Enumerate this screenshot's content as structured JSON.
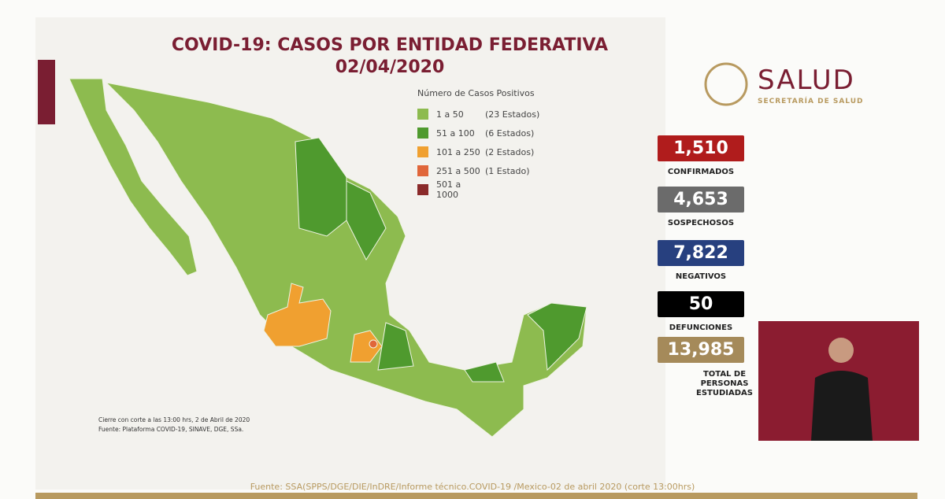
{
  "header": {
    "title": "COVID-19: CASOS POR ENTIDAD FEDERATIVA",
    "date": "02/04/2020"
  },
  "legend": {
    "title": "Número de Casos Positivos",
    "items": [
      {
        "range": "1 a  50",
        "count": "(23 Estados)",
        "color": "#8dbb4f"
      },
      {
        "range": "51 a  100",
        "count": "(6 Estados)",
        "color": "#4f9a2e"
      },
      {
        "range": "101 a  250",
        "count": "(2 Estados)",
        "color": "#f0a030"
      },
      {
        "range": "251 a  500",
        "count": "(1 Estado)",
        "color": "#e0663a"
      },
      {
        "range": "501 a 1000",
        "color": "#8a2a2a"
      }
    ]
  },
  "logo": {
    "name": "SALUD",
    "subtitle": "SECRETARÍA DE SALUD"
  },
  "stats": [
    {
      "value": "1,510",
      "label": "CONFIRMADOS",
      "color": "#b01c1c"
    },
    {
      "value": "4,653",
      "label": "SOSPECHOSOS",
      "color": "#6b6b6b"
    },
    {
      "value": "7,822",
      "label": "NEGATIVOS",
      "color": "#27407f"
    },
    {
      "value": "50",
      "label": "DEFUNCIONES",
      "color": "#000000"
    },
    {
      "value": "13,985",
      "label": "TOTAL DE PERSONAS ESTUDIADAS",
      "color": "#a58a5a"
    }
  ],
  "notes": [
    "Cierre con corte a las 13:00 hrs, 2 de Abril de 2020",
    "Fuente: Plataforma COVID-19, SINAVE, DGE, SSa."
  ],
  "footer": "Fuente: SSA(SPPS/DGE/DIE/InDRE/Informe técnico.COVID-19 /Mexico-02 de abril 2020 (corte 13:00hrs)"
}
